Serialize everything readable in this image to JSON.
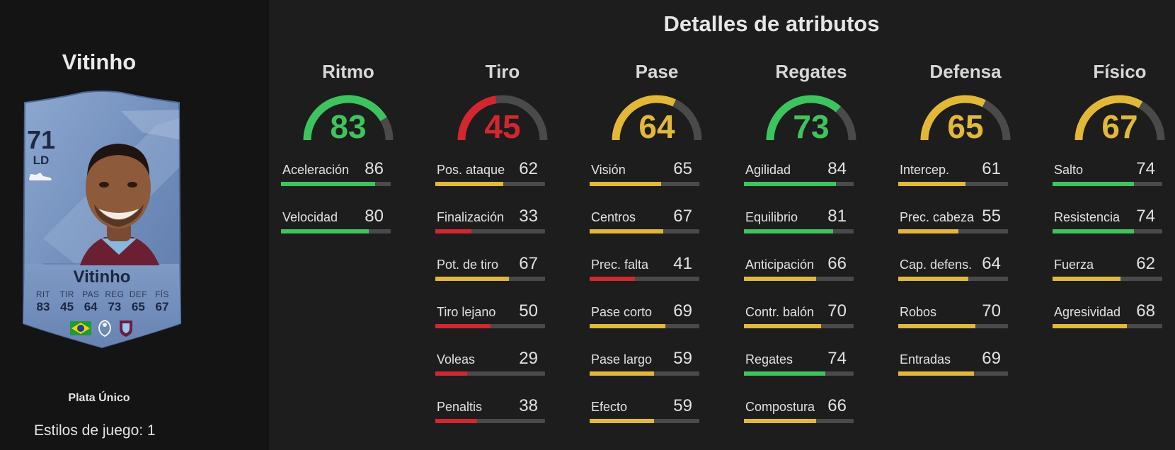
{
  "player": {
    "name": "Vitinho",
    "card_type": "Plata Único",
    "playstyles_label": "Estilos de juego: 1"
  },
  "card": {
    "rating": "71",
    "position": "LD",
    "name": "Vitinho",
    "stats": [
      {
        "label": "RIT",
        "value": "83"
      },
      {
        "label": "TIR",
        "value": "45"
      },
      {
        "label": "PAS",
        "value": "64"
      },
      {
        "label": "REG",
        "value": "73"
      },
      {
        "label": "DEF",
        "value": "65"
      },
      {
        "label": "FÍS",
        "value": "67"
      }
    ],
    "badges": [
      "brazil-flag-icon",
      "premier-league-icon",
      "burnley-crest-icon"
    ]
  },
  "title": "Detalles de atributos",
  "colors": {
    "green": "#3ec45e",
    "yellow": "#e3b838",
    "red": "#d4262f",
    "track": "#4a4a4a"
  },
  "categories": [
    {
      "name": "Ritmo",
      "value": "83",
      "color": "green",
      "attributes": [
        {
          "name": "Aceleración",
          "value": "86",
          "color": "green"
        },
        {
          "name": "Velocidad",
          "value": "80",
          "color": "green"
        }
      ]
    },
    {
      "name": "Tiro",
      "value": "45",
      "color": "red",
      "attributes": [
        {
          "name": "Pos. ataque",
          "value": "62",
          "color": "yellow"
        },
        {
          "name": "Finalización",
          "value": "33",
          "color": "red"
        },
        {
          "name": "Pot. de tiro",
          "value": "67",
          "color": "yellow"
        },
        {
          "name": "Tiro lejano",
          "value": "50",
          "color": "red"
        },
        {
          "name": "Voleas",
          "value": "29",
          "color": "red"
        },
        {
          "name": "Penaltis",
          "value": "38",
          "color": "red"
        }
      ]
    },
    {
      "name": "Pase",
      "value": "64",
      "color": "yellow",
      "attributes": [
        {
          "name": "Visión",
          "value": "65",
          "color": "yellow"
        },
        {
          "name": "Centros",
          "value": "67",
          "color": "yellow"
        },
        {
          "name": "Prec. falta",
          "value": "41",
          "color": "red"
        },
        {
          "name": "Pase corto",
          "value": "69",
          "color": "yellow"
        },
        {
          "name": "Pase largo",
          "value": "59",
          "color": "yellow"
        },
        {
          "name": "Efecto",
          "value": "59",
          "color": "yellow"
        }
      ]
    },
    {
      "name": "Regates",
      "value": "73",
      "color": "green",
      "attributes": [
        {
          "name": "Agilidad",
          "value": "84",
          "color": "green"
        },
        {
          "name": "Equilibrio",
          "value": "81",
          "color": "green"
        },
        {
          "name": "Anticipación",
          "value": "66",
          "color": "yellow"
        },
        {
          "name": "Contr. balón",
          "value": "70",
          "color": "yellow"
        },
        {
          "name": "Regates",
          "value": "74",
          "color": "green"
        },
        {
          "name": "Compostura",
          "value": "66",
          "color": "yellow"
        }
      ]
    },
    {
      "name": "Defensa",
      "value": "65",
      "color": "yellow",
      "attributes": [
        {
          "name": "Intercep.",
          "value": "61",
          "color": "yellow"
        },
        {
          "name": "Prec. cabeza",
          "value": "55",
          "color": "yellow"
        },
        {
          "name": "Cap. defens.",
          "value": "64",
          "color": "yellow"
        },
        {
          "name": "Robos",
          "value": "70",
          "color": "yellow"
        },
        {
          "name": "Entradas",
          "value": "69",
          "color": "yellow"
        }
      ]
    },
    {
      "name": "Físico",
      "value": "67",
      "color": "yellow",
      "attributes": [
        {
          "name": "Salto",
          "value": "74",
          "color": "green"
        },
        {
          "name": "Resistencia",
          "value": "74",
          "color": "green"
        },
        {
          "name": "Fuerza",
          "value": "62",
          "color": "yellow"
        },
        {
          "name": "Agresividad",
          "value": "68",
          "color": "yellow"
        }
      ]
    }
  ]
}
